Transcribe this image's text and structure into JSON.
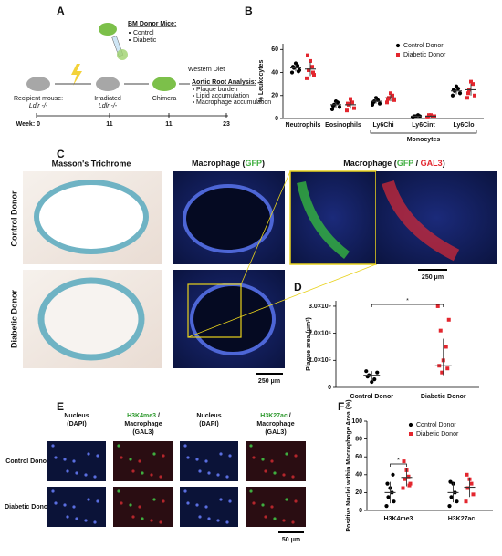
{
  "panel_labels": [
    "A",
    "B",
    "C",
    "D",
    "E",
    "F"
  ],
  "diagram": {
    "donor_title": "BM Donor Mice:",
    "donor_items": [
      "Control",
      "Diabetic"
    ],
    "recipient": "Recipient mouse:",
    "recipient_genotype": "Ldlr -/-",
    "irradiated": "Irradiated",
    "irradiated_genotype": "Ldlr -/-",
    "chimera": "Chimera",
    "diet": "Western Diet",
    "analysis_title": "Aortic Root Analysis:",
    "analysis_items": [
      "Plaque burden",
      "Lipid accumulation",
      "Macrophage accumulation"
    ],
    "weeks": [
      "Week: 0",
      "11",
      "11",
      "23"
    ]
  },
  "histology": {
    "headers": [
      "Masson's Trichrome"
    ],
    "header_gfp": [
      "Macrophage (",
      "GFP",
      ")"
    ],
    "header_gfp_gal3": [
      "Macrophage (",
      "GFP",
      " / ",
      "GAL3",
      ")"
    ],
    "rows": [
      "Control Donor",
      "Diabetic Donor"
    ],
    "scale_bar": "250 μm"
  },
  "staining": {
    "nucleus": [
      "Nucleus",
      "(DAPI)"
    ],
    "h3k4": [
      "H3K4me3",
      " /",
      "Macrophage",
      "(GAL3)"
    ],
    "h3k27": [
      "H3K27ac",
      " /",
      "Macrophage",
      "(GAL3)"
    ],
    "rows": [
      "Control Donor",
      "Diabetic Donor"
    ],
    "scale_bar": "50 μm"
  },
  "chart_data": [
    {
      "type": "dot",
      "y_label": "% Leukocytes",
      "categories": [
        "Neutrophils",
        "Eosinophils",
        "Ly6Chi",
        "Ly6Cint",
        "Ly6Clo"
      ],
      "group_label": "Monocytes",
      "ylim": [
        0,
        65
      ],
      "yticks": [
        0,
        20,
        40,
        60
      ],
      "legend": "upper right",
      "series": [
        {
          "name": "Control Donor",
          "color": "#000000",
          "marker": "circle",
          "values": [
            44,
            12,
            15,
            2,
            24
          ],
          "errors": [
            3,
            2.5,
            2,
            0.7,
            3
          ],
          "points": [
            [
              40,
              42,
              44,
              46,
              48,
              45,
              41
            ],
            [
              8,
              10,
              12,
              14,
              15,
              11
            ],
            [
              12,
              13,
              15,
              16,
              18,
              14
            ],
            [
              1,
              2,
              2,
              3,
              2,
              1
            ],
            [
              20,
              22,
              24,
              26,
              28,
              25
            ]
          ]
        },
        {
          "name": "Diabetic Donor",
          "color": "#e3262e",
          "marker": "square",
          "values": [
            43,
            12,
            18,
            2,
            25
          ],
          "errors": [
            6,
            3.5,
            3,
            0.8,
            5
          ],
          "points": [
            [
              35,
              38,
              42,
              45,
              50,
              55,
              40
            ],
            [
              7,
              9,
              12,
              14,
              17,
              13
            ],
            [
              14,
              16,
              18,
              20,
              22,
              17
            ],
            [
              1,
              2,
              3,
              2,
              3,
              1
            ],
            [
              18,
              20,
              25,
              30,
              32,
              22
            ]
          ]
        }
      ]
    },
    {
      "type": "dot",
      "y_label": "Plaque area (μm²)",
      "categories": [
        "Control Donor",
        "Diabetic Donor"
      ],
      "colors": [
        "#000000",
        "#e3262e"
      ],
      "markers": [
        "circle",
        "square"
      ],
      "ylim": [
        0,
        320000
      ],
      "yticks": [
        0,
        {
          "value": 100000,
          "label": "1.0×10⁵"
        },
        {
          "value": 200000,
          "label": "2.0×10⁵"
        },
        {
          "value": 300000,
          "label": "3.0×10⁵"
        }
      ],
      "values": [
        45000,
        80000
      ],
      "ranges": [
        [
          25000,
          60000
        ],
        [
          45000,
          180000
        ]
      ],
      "points": [
        [
          60000,
          55000,
          45000,
          30000,
          20000,
          40000
        ],
        [
          300000,
          250000,
          210000,
          150000,
          100000,
          80000,
          70000,
          55000
        ]
      ],
      "annotation": "*"
    },
    {
      "type": "dot",
      "y_label": "Positive Nuclei within Macrophage Area (%)",
      "categories": [
        "H3K4me3",
        "H3K27ac"
      ],
      "ylim": [
        0,
        100
      ],
      "yticks": [
        0,
        20,
        40,
        60,
        80,
        100
      ],
      "legend": "upper right",
      "annotation": "*",
      "series": [
        {
          "name": "Control Donor",
          "color": "#000000",
          "marker": "circle",
          "values": [
            20,
            20
          ],
          "errors": [
            12,
            11
          ],
          "points": [
            [
              5,
              10,
              15,
              20,
              25,
              30,
              40
            ],
            [
              5,
              10,
              15,
              20,
              30,
              32
            ]
          ]
        },
        {
          "name": "Diabetic Donor",
          "color": "#e3262e",
          "marker": "square",
          "values": [
            37,
            26
          ],
          "errors": [
            10,
            11
          ],
          "points": [
            [
              25,
              30,
              35,
              38,
              45,
              55,
              28
            ],
            [
              10,
              18,
              25,
              30,
              35,
              40
            ]
          ]
        }
      ]
    }
  ]
}
